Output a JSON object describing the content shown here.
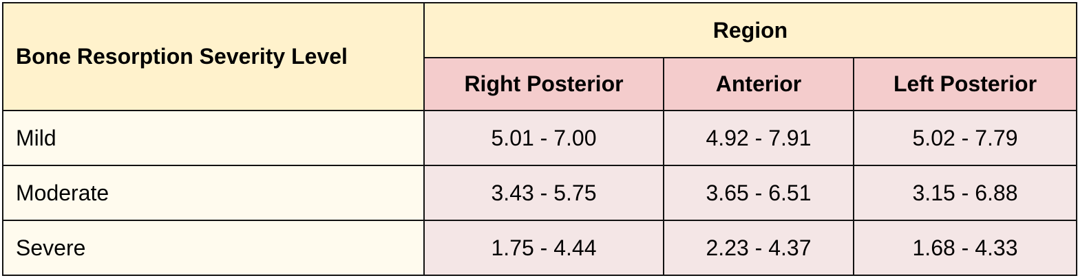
{
  "table": {
    "corner_header": "Bone Resorption Severity Level",
    "group_header": "Region",
    "columns": [
      "Right Posterior",
      "Anterior",
      "Left Posterior"
    ],
    "rows": [
      {
        "label": "Mild",
        "values": [
          "5.01 - 7.00",
          "4.92 - 7.91",
          "5.02 - 7.79"
        ]
      },
      {
        "label": "Moderate",
        "values": [
          "3.43 - 5.75",
          "3.65 - 6.51",
          "3.15 - 6.88"
        ]
      },
      {
        "label": "Severe",
        "values": [
          "1.75 - 4.44",
          "2.23 - 4.37",
          "1.68 - 4.33"
        ]
      }
    ],
    "colors": {
      "header_bg": "#fff2cc",
      "subheader_bg": "#f4cccc",
      "row_label_bg": "#fffbee",
      "cell_bg": "#f4e6e6",
      "border": "#111111"
    }
  }
}
